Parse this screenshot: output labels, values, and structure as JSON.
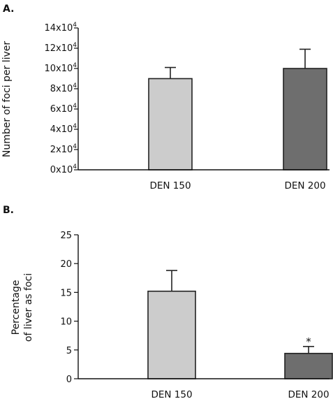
{
  "chart_data": [
    {
      "panel_label": "A.",
      "type": "bar",
      "ylabel": "Number of foci per liver",
      "categories": [
        "DEN 150",
        "DEN 200"
      ],
      "values": [
        90000,
        100000
      ],
      "errors": [
        11000,
        19000
      ],
      "colors": [
        "#cccccc",
        "#6e6e6e"
      ],
      "ylim": [
        0,
        140000
      ],
      "yticks": [
        {
          "value": 140000,
          "base": "14x10",
          "exp": "4"
        },
        {
          "value": 120000,
          "base": "12x10",
          "exp": "4"
        },
        {
          "value": 100000,
          "base": "10x10",
          "exp": "4"
        },
        {
          "value": 80000,
          "base": "8x10",
          "exp": "4"
        },
        {
          "value": 60000,
          "base": "6x10",
          "exp": "4"
        },
        {
          "value": 40000,
          "base": "4x10",
          "exp": "4"
        },
        {
          "value": 20000,
          "base": "2x10",
          "exp": "4"
        },
        {
          "value": 0,
          "base": "0x10",
          "exp": "4"
        }
      ],
      "annotations": [
        "",
        ""
      ]
    },
    {
      "panel_label": "B.",
      "type": "bar",
      "ylabel_lines": [
        "Percentage",
        "of liver as foci"
      ],
      "categories": [
        "DEN 150",
        "DEN 200"
      ],
      "values": [
        15.2,
        4.4
      ],
      "errors": [
        3.6,
        1.2
      ],
      "colors": [
        "#cccccc",
        "#6e6e6e"
      ],
      "ylim": [
        0,
        25
      ],
      "yticks": [
        {
          "value": 25,
          "label": "25"
        },
        {
          "value": 20,
          "label": "20"
        },
        {
          "value": 15,
          "label": "15"
        },
        {
          "value": 10,
          "label": "10"
        },
        {
          "value": 5,
          "label": "5"
        },
        {
          "value": 0,
          "label": "0"
        }
      ],
      "annotations": [
        "",
        "*"
      ]
    }
  ]
}
